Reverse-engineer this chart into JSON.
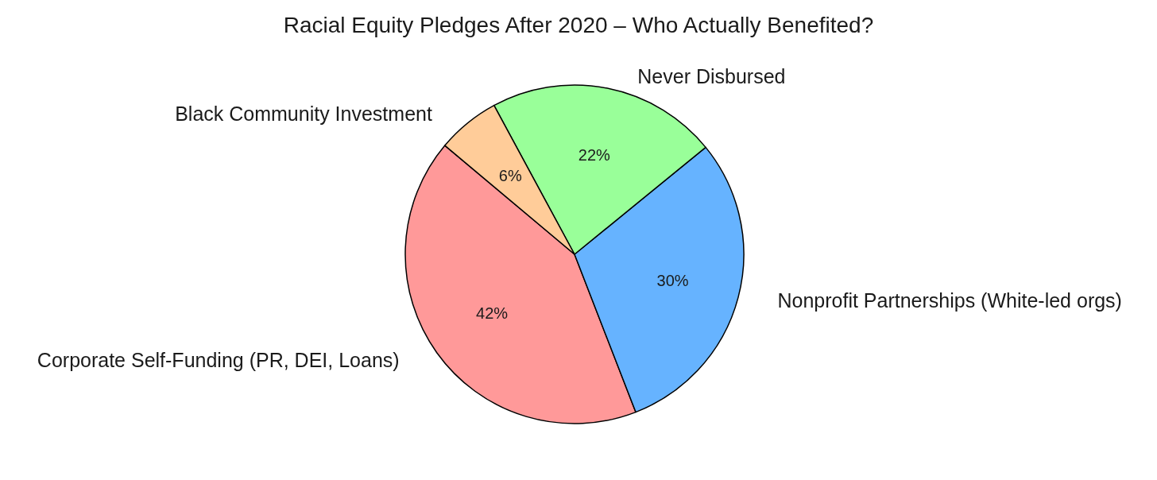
{
  "chart_data": {
    "type": "pie",
    "title": "Racial Equity Pledges After 2020 – Who Actually Benefited?",
    "categories": [
      "Corporate Self-Funding (PR, DEI, Loans)",
      "Nonprofit Partnerships (White-led orgs)",
      "Never Disbursed",
      "Black Community Investment"
    ],
    "values": [
      42,
      30,
      22,
      6
    ],
    "colors": [
      "#ff9999",
      "#66b3ff",
      "#99ff99",
      "#ffcc99"
    ],
    "value_labels": [
      "42%",
      "30%",
      "22%",
      "6%"
    ],
    "legend": false
  }
}
